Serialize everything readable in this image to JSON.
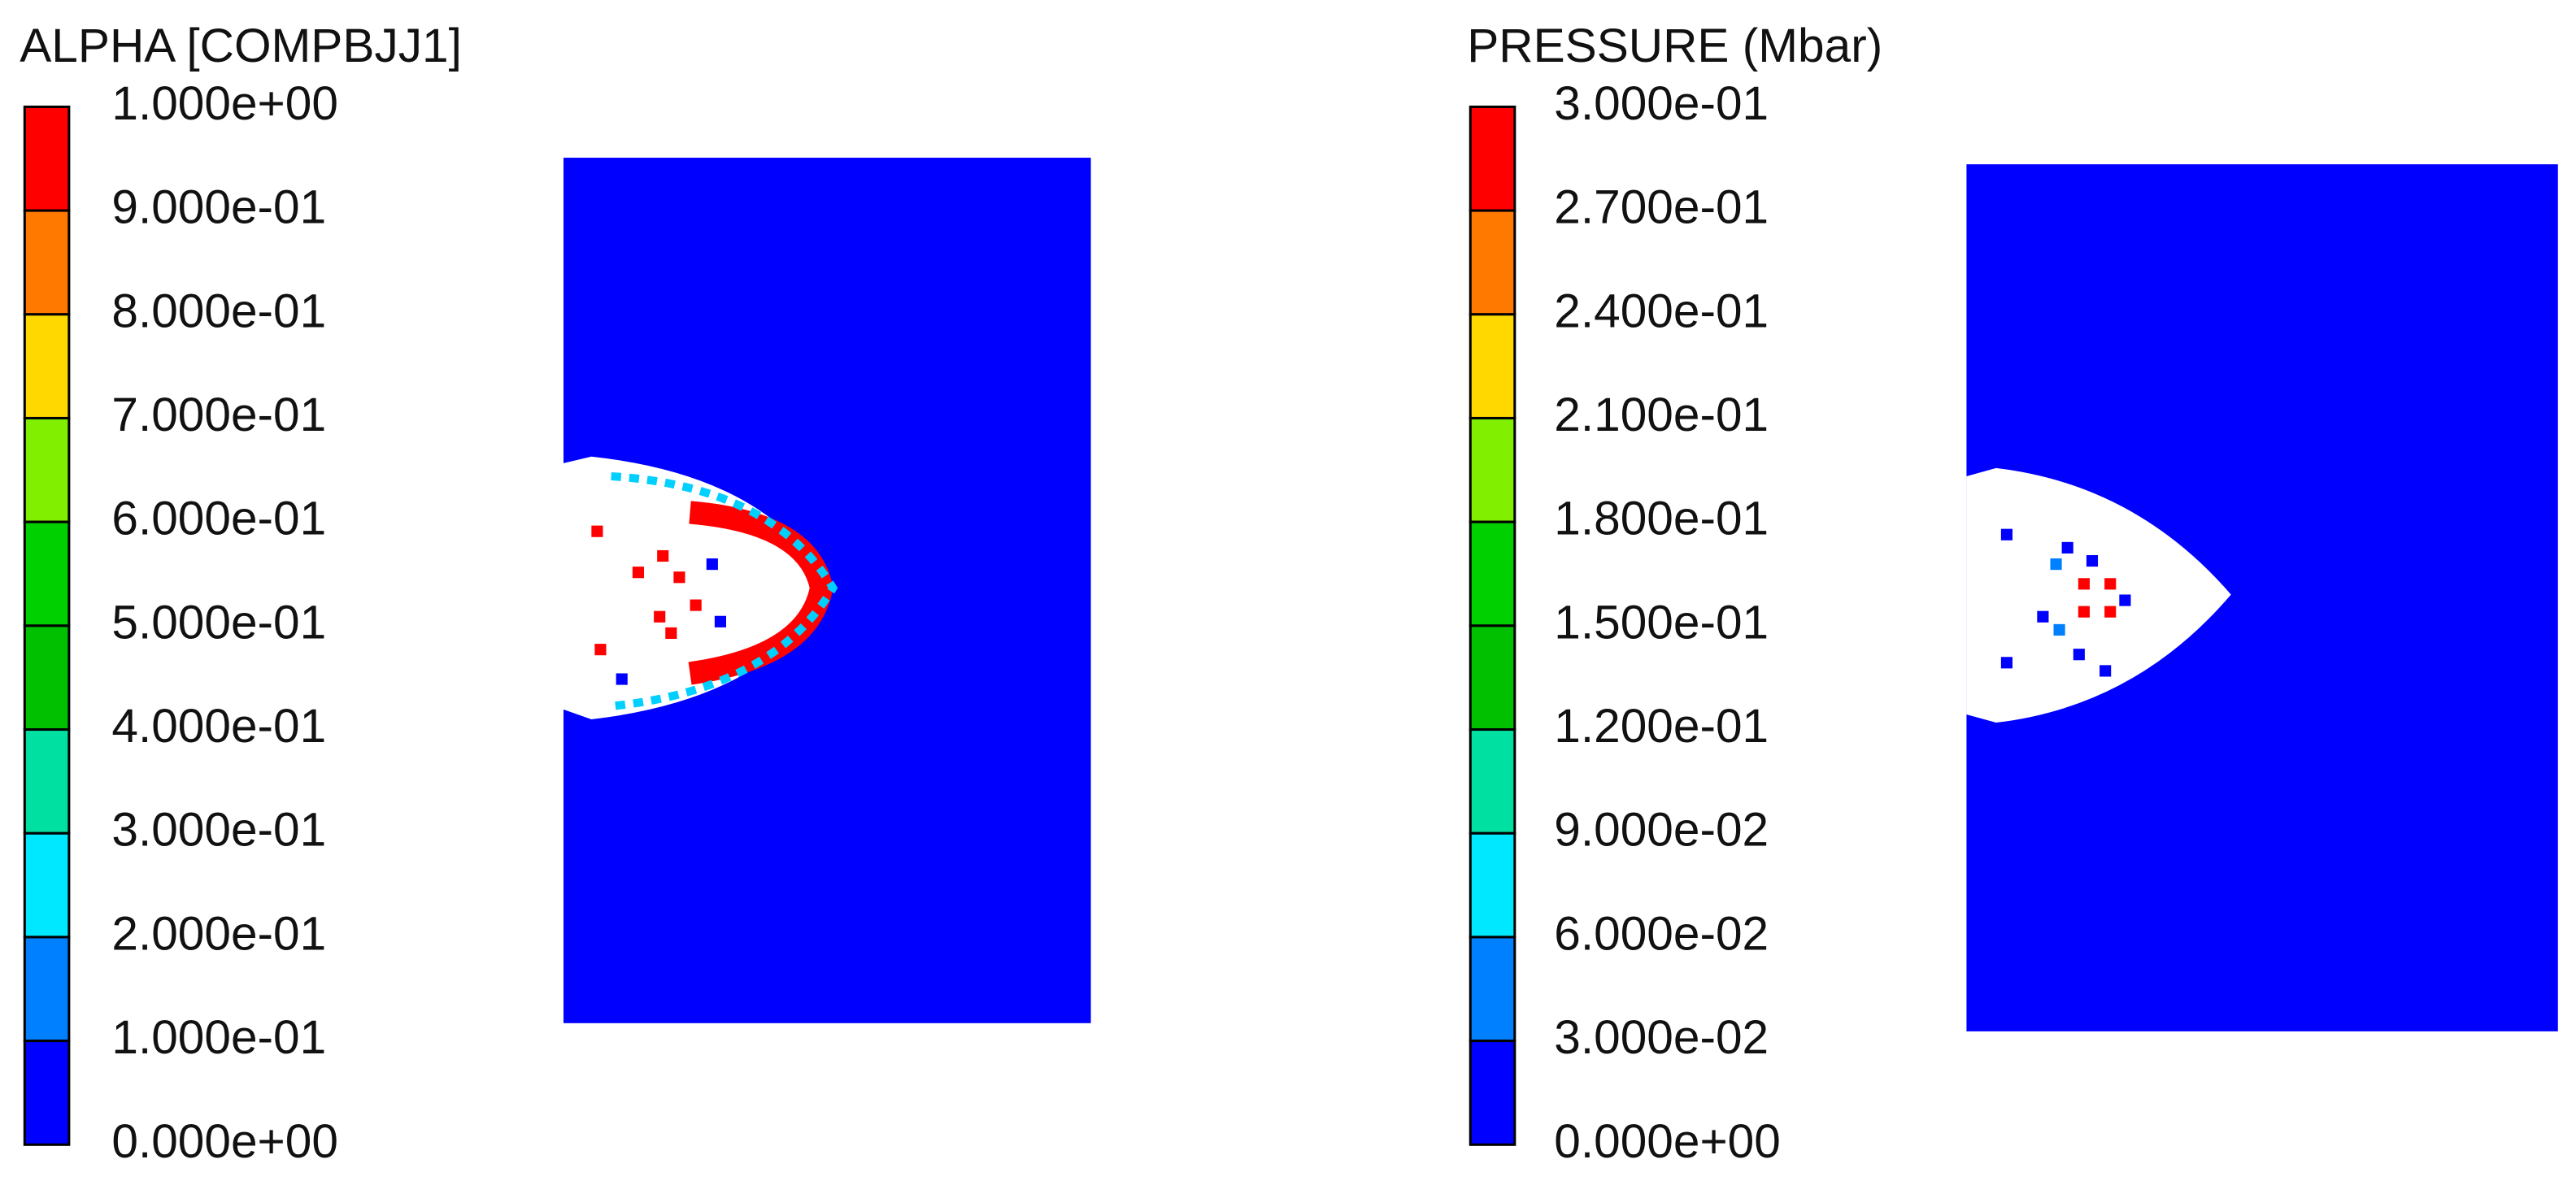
{
  "panels": [
    {
      "title": "ALPHA [COMPBJJ1]",
      "levels": [
        "1.000e+00",
        "9.000e-01",
        "8.000e-01",
        "7.000e-01",
        "6.000e-01",
        "5.000e-01",
        "4.000e-01",
        "3.000e-01",
        "2.000e-01",
        "1.000e-01",
        "0.000e+00"
      ],
      "colors": [
        "#ff0000",
        "#ff7800",
        "#ffd800",
        "#80f000",
        "#00d000",
        "#00c000",
        "#00e0a0",
        "#00e8ff",
        "#0080ff",
        "#0000ff"
      ]
    },
    {
      "title": "PRESSURE (Mbar)",
      "levels": [
        "3.000e-01",
        "2.700e-01",
        "2.400e-01",
        "2.100e-01",
        "1.800e-01",
        "1.500e-01",
        "1.200e-01",
        "9.000e-02",
        "6.000e-02",
        "3.000e-02",
        "0.000e+00"
      ],
      "colors": [
        "#ff0000",
        "#ff7800",
        "#ffd800",
        "#80f000",
        "#00d000",
        "#00c000",
        "#00e0a0",
        "#00e8ff",
        "#0080ff",
        "#0000ff"
      ]
    }
  ]
}
